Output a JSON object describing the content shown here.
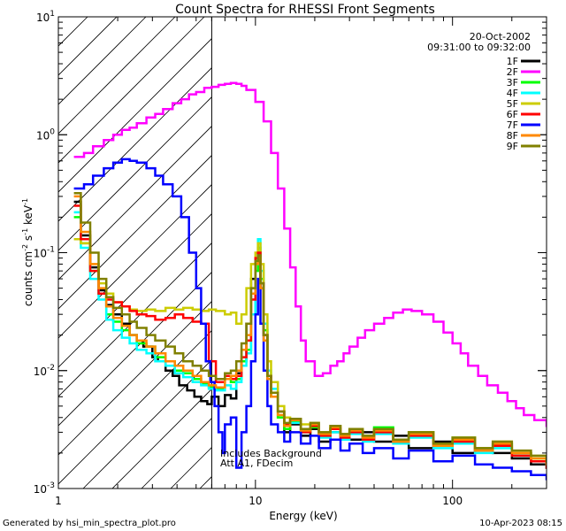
{
  "chart_data": {
    "type": "line",
    "title": "Count Spectra for RHESSI Front Segments",
    "xlabel": "Energy (keV)",
    "ylabel_main": "counts cm",
    "ylabel_exp1": "-2",
    "ylabel_mid": " s",
    "ylabel_exp2": "-1",
    "ylabel_tail": " keV",
    "ylabel_exp3": "-1",
    "x_scale": "log",
    "y_scale": "log",
    "xlim": [
      1,
      300
    ],
    "ylim": [
      0.001,
      10
    ],
    "x_ticks": [
      {
        "value": 1,
        "label": "1"
      },
      {
        "value": 10,
        "label": "10"
      },
      {
        "value": 100,
        "label": "100"
      }
    ],
    "y_ticks": [
      {
        "value": 10,
        "base": "10",
        "exp": "1"
      },
      {
        "value": 1,
        "base": "10",
        "exp": "0"
      },
      {
        "value": 0.1,
        "base": "10",
        "exp": "-1"
      },
      {
        "value": 0.01,
        "base": "10",
        "exp": "-2"
      },
      {
        "value": 0.001,
        "base": "10",
        "exp": "-3"
      }
    ],
    "date": "20-Oct-2002",
    "time_range": "09:31:00 to 09:32:00",
    "annotation_lines": [
      "Includes Background",
      "Att A1, FDecim"
    ],
    "shaded_region_keV": [
      1,
      6
    ],
    "legend_position": "top-right",
    "series": [
      {
        "name": "1F",
        "color": "#000000",
        "x": [
          1.2,
          1.3,
          1.45,
          1.6,
          1.75,
          1.9,
          2.1,
          2.3,
          2.5,
          2.7,
          3.0,
          3.2,
          3.5,
          3.8,
          4.1,
          4.5,
          4.9,
          5.3,
          5.7,
          6.0,
          6.5,
          7,
          7.5,
          8,
          8.5,
          9,
          9.5,
          10,
          10.3,
          10.6,
          11,
          11.5,
          12,
          13,
          14,
          15,
          17,
          19,
          21,
          24,
          27,
          30,
          35,
          40,
          50,
          60,
          80,
          100,
          130,
          160,
          200,
          250,
          300
        ],
        "y": [
          0.27,
          0.14,
          0.075,
          0.048,
          0.036,
          0.03,
          0.025,
          0.02,
          0.018,
          0.016,
          0.013,
          0.012,
          0.01,
          0.009,
          0.0075,
          0.0068,
          0.006,
          0.0055,
          0.0052,
          0.006,
          0.005,
          0.0062,
          0.0058,
          0.0095,
          0.012,
          0.025,
          0.06,
          0.08,
          0.1,
          0.05,
          0.02,
          0.009,
          0.006,
          0.004,
          0.003,
          0.0035,
          0.0028,
          0.0032,
          0.0025,
          0.003,
          0.0028,
          0.0026,
          0.003,
          0.0025,
          0.0028,
          0.0022,
          0.0025,
          0.002,
          0.0022,
          0.002,
          0.0018,
          0.0016,
          0.0015
        ]
      },
      {
        "name": "2F",
        "color": "#ff00ff",
        "x": [
          1.2,
          1.35,
          1.5,
          1.7,
          1.9,
          2.1,
          2.3,
          2.5,
          2.8,
          3.1,
          3.4,
          3.8,
          4.2,
          4.6,
          5.0,
          5.5,
          6.0,
          6.5,
          7.0,
          7.5,
          8.0,
          8.5,
          9.0,
          10,
          11,
          12,
          13,
          14,
          15,
          16,
          17,
          18,
          20,
          22,
          24,
          26,
          28,
          30,
          33,
          36,
          40,
          45,
          50,
          56,
          62,
          70,
          80,
          90,
          100,
          110,
          120,
          135,
          150,
          170,
          190,
          210,
          230,
          260,
          300
        ],
        "y": [
          0.65,
          0.7,
          0.8,
          0.9,
          1.0,
          1.1,
          1.15,
          1.25,
          1.4,
          1.5,
          1.65,
          1.85,
          2.0,
          2.2,
          2.3,
          2.5,
          2.55,
          2.65,
          2.7,
          2.75,
          2.7,
          2.6,
          2.4,
          1.9,
          1.3,
          0.7,
          0.35,
          0.16,
          0.075,
          0.035,
          0.018,
          0.012,
          0.009,
          0.0095,
          0.011,
          0.012,
          0.014,
          0.016,
          0.019,
          0.022,
          0.025,
          0.028,
          0.031,
          0.033,
          0.032,
          0.03,
          0.026,
          0.021,
          0.017,
          0.014,
          0.011,
          0.009,
          0.0075,
          0.0065,
          0.0055,
          0.0048,
          0.0042,
          0.0038,
          0.0034
        ]
      },
      {
        "name": "3F",
        "color": "#00ff00",
        "x": [
          1.2,
          1.3,
          1.45,
          1.6,
          1.75,
          1.9,
          2.1,
          2.3,
          2.5,
          2.8,
          3.1,
          3.5,
          3.9,
          4.3,
          4.8,
          5.3,
          5.8,
          6.3,
          7,
          7.5,
          8,
          8.5,
          9,
          9.5,
          10,
          10.3,
          10.6,
          11,
          11.5,
          12,
          13,
          14,
          15,
          17,
          19,
          21,
          24,
          27,
          30,
          35,
          40,
          50,
          60,
          80,
          100,
          130,
          160,
          200,
          250,
          300
        ],
        "y": [
          0.2,
          0.12,
          0.07,
          0.045,
          0.03,
          0.026,
          0.022,
          0.02,
          0.017,
          0.016,
          0.013,
          0.012,
          0.01,
          0.0095,
          0.0085,
          0.0078,
          0.0072,
          0.007,
          0.0085,
          0.008,
          0.0085,
          0.012,
          0.015,
          0.03,
          0.07,
          0.11,
          0.06,
          0.022,
          0.009,
          0.006,
          0.004,
          0.0032,
          0.0037,
          0.003,
          0.0033,
          0.0028,
          0.0032,
          0.0027,
          0.0031,
          0.0028,
          0.0033,
          0.0026,
          0.003,
          0.0024,
          0.0027,
          0.0022,
          0.0024,
          0.002,
          0.0018,
          0.0016
        ]
      },
      {
        "name": "4F",
        "color": "#00ffff",
        "x": [
          1.2,
          1.3,
          1.45,
          1.6,
          1.75,
          1.9,
          2.1,
          2.3,
          2.5,
          2.8,
          3.1,
          3.5,
          3.9,
          4.3,
          4.8,
          5.3,
          5.8,
          6.3,
          7,
          7.5,
          8,
          8.5,
          9,
          9.5,
          10,
          10.3,
          10.6,
          11,
          11.5,
          12,
          13,
          14,
          15,
          17,
          19,
          21,
          24,
          27,
          30,
          35,
          40,
          50,
          60,
          80,
          100,
          130,
          160,
          200,
          250,
          300
        ],
        "y": [
          0.22,
          0.11,
          0.06,
          0.04,
          0.027,
          0.022,
          0.019,
          0.017,
          0.015,
          0.014,
          0.012,
          0.011,
          0.0095,
          0.0088,
          0.008,
          0.0075,
          0.007,
          0.0068,
          0.0075,
          0.007,
          0.008,
          0.011,
          0.014,
          0.03,
          0.08,
          0.13,
          0.07,
          0.025,
          0.01,
          0.007,
          0.0045,
          0.0035,
          0.0036,
          0.003,
          0.0034,
          0.0027,
          0.003,
          0.0026,
          0.0029,
          0.0025,
          0.0029,
          0.0024,
          0.0027,
          0.0022,
          0.0024,
          0.002,
          0.0022,
          0.0019,
          0.0017,
          0.0015
        ]
      },
      {
        "name": "5F",
        "color": "#cccc00",
        "x": [
          1.2,
          1.3,
          1.45,
          1.6,
          1.75,
          1.9,
          2.1,
          2.3,
          2.5,
          2.8,
          3.1,
          3.5,
          3.9,
          4.3,
          4.8,
          5.3,
          5.8,
          6.3,
          7,
          7.5,
          8,
          8.5,
          9,
          9.5,
          10,
          10.3,
          10.6,
          11,
          11.5,
          12,
          13,
          14,
          15,
          17,
          19,
          21,
          24,
          27,
          30,
          35,
          40,
          50,
          60,
          80,
          100,
          130,
          160,
          200,
          250,
          300
        ],
        "y": [
          0.13,
          0.12,
          0.08,
          0.055,
          0.045,
          0.038,
          0.035,
          0.033,
          0.032,
          0.033,
          0.032,
          0.034,
          0.033,
          0.034,
          0.033,
          0.032,
          0.033,
          0.032,
          0.03,
          0.031,
          0.025,
          0.03,
          0.05,
          0.08,
          0.1,
          0.12,
          0.08,
          0.03,
          0.012,
          0.008,
          0.005,
          0.004,
          0.0038,
          0.0035,
          0.0036,
          0.003,
          0.0034,
          0.0029,
          0.0032,
          0.0028,
          0.0031,
          0.0026,
          0.003,
          0.0024,
          0.0027,
          0.0022,
          0.0025,
          0.002,
          0.0018,
          0.0016
        ]
      },
      {
        "name": "6F",
        "color": "#ff0000",
        "x": [
          1.2,
          1.3,
          1.45,
          1.6,
          1.75,
          1.9,
          2.1,
          2.3,
          2.5,
          2.8,
          3.1,
          3.5,
          3.9,
          4.3,
          4.8,
          5.3,
          5.8,
          6.3,
          7,
          7.5,
          8,
          8.5,
          9,
          9.5,
          10,
          10.3,
          10.6,
          11,
          11.5,
          12,
          13,
          14,
          15,
          17,
          19,
          21,
          24,
          27,
          30,
          35,
          40,
          50,
          60,
          80,
          100,
          130,
          160,
          200,
          250,
          300
        ],
        "y": [
          0.25,
          0.13,
          0.07,
          0.045,
          0.04,
          0.038,
          0.035,
          0.032,
          0.03,
          0.029,
          0.027,
          0.028,
          0.03,
          0.028,
          0.026,
          0.025,
          0.012,
          0.008,
          0.009,
          0.0085,
          0.009,
          0.013,
          0.018,
          0.04,
          0.09,
          0.1,
          0.055,
          0.02,
          0.009,
          0.0065,
          0.0045,
          0.0035,
          0.0038,
          0.003,
          0.0034,
          0.0028,
          0.0032,
          0.0027,
          0.003,
          0.0026,
          0.003,
          0.0025,
          0.0028,
          0.0023,
          0.0025,
          0.0021,
          0.0023,
          0.0019,
          0.0017,
          0.0015
        ]
      },
      {
        "name": "7F",
        "color": "#0000ff",
        "x": [
          1.2,
          1.35,
          1.5,
          1.7,
          1.9,
          2.1,
          2.3,
          2.5,
          2.8,
          3.1,
          3.4,
          3.8,
          4.2,
          4.6,
          5.0,
          5.3,
          5.6,
          5.9,
          6.2,
          6.5,
          6.8,
          7,
          7.5,
          8,
          8.5,
          9,
          9.5,
          10,
          10.3,
          10.6,
          11,
          11.5,
          12,
          13,
          14,
          15,
          17,
          19,
          21,
          24,
          27,
          30,
          35,
          40,
          50,
          60,
          80,
          100,
          130,
          160,
          200,
          250,
          300
        ],
        "y": [
          0.35,
          0.38,
          0.45,
          0.52,
          0.58,
          0.62,
          0.6,
          0.58,
          0.52,
          0.45,
          0.38,
          0.3,
          0.2,
          0.1,
          0.05,
          0.025,
          0.012,
          0.008,
          0.005,
          0.003,
          0.002,
          0.0035,
          0.004,
          0.0015,
          0.003,
          0.005,
          0.012,
          0.03,
          0.06,
          0.025,
          0.01,
          0.005,
          0.0035,
          0.003,
          0.0025,
          0.003,
          0.0024,
          0.0028,
          0.0022,
          0.0026,
          0.0021,
          0.0024,
          0.002,
          0.0022,
          0.0018,
          0.0021,
          0.0017,
          0.0019,
          0.0016,
          0.0015,
          0.0014,
          0.0013,
          0.0012
        ]
      },
      {
        "name": "8F",
        "color": "#ff8800",
        "x": [
          1.2,
          1.3,
          1.45,
          1.6,
          1.75,
          1.9,
          2.1,
          2.3,
          2.5,
          2.8,
          3.1,
          3.5,
          3.9,
          4.3,
          4.8,
          5.3,
          5.8,
          6.3,
          7,
          7.5,
          8,
          8.5,
          9,
          9.5,
          10,
          10.3,
          10.6,
          11,
          11.5,
          12,
          13,
          14,
          15,
          17,
          19,
          21,
          24,
          27,
          30,
          35,
          40,
          50,
          60,
          80,
          100,
          130,
          160,
          200,
          250,
          300
        ],
        "y": [
          0.3,
          0.15,
          0.08,
          0.05,
          0.035,
          0.028,
          0.024,
          0.02,
          0.018,
          0.016,
          0.014,
          0.012,
          0.011,
          0.01,
          0.009,
          0.008,
          0.0075,
          0.0072,
          0.0085,
          0.009,
          0.01,
          0.015,
          0.02,
          0.045,
          0.08,
          0.09,
          0.05,
          0.018,
          0.0085,
          0.006,
          0.0042,
          0.0034,
          0.0038,
          0.0031,
          0.0035,
          0.0029,
          0.0033,
          0.0028,
          0.0031,
          0.0027,
          0.0031,
          0.0025,
          0.0029,
          0.0023,
          0.0026,
          0.0021,
          0.0024,
          0.002,
          0.0018,
          0.0016
        ]
      },
      {
        "name": "9F",
        "color": "#808000",
        "x": [
          1.2,
          1.3,
          1.45,
          1.6,
          1.75,
          1.9,
          2.1,
          2.3,
          2.5,
          2.8,
          3.1,
          3.5,
          3.9,
          4.3,
          4.8,
          5.3,
          5.8,
          6.3,
          7,
          7.5,
          8,
          8.5,
          9,
          9.5,
          10,
          10.3,
          10.6,
          11,
          11.5,
          12,
          13,
          14,
          15,
          17,
          19,
          21,
          24,
          27,
          30,
          35,
          40,
          50,
          60,
          80,
          100,
          130,
          160,
          200,
          250,
          300
        ],
        "y": [
          0.32,
          0.18,
          0.1,
          0.06,
          0.042,
          0.034,
          0.03,
          0.026,
          0.023,
          0.02,
          0.018,
          0.016,
          0.014,
          0.012,
          0.011,
          0.01,
          0.009,
          0.0085,
          0.0095,
          0.01,
          0.012,
          0.017,
          0.025,
          0.05,
          0.085,
          0.095,
          0.055,
          0.02,
          0.009,
          0.0065,
          0.0045,
          0.0036,
          0.0039,
          0.0032,
          0.0036,
          0.003,
          0.0034,
          0.0029,
          0.0032,
          0.0028,
          0.0032,
          0.0026,
          0.003,
          0.0024,
          0.0027,
          0.0022,
          0.0025,
          0.0021,
          0.0019,
          0.0017
        ]
      }
    ]
  },
  "footer": {
    "generated_by": "Generated by hsi_min_spectra_plot.pro",
    "timestamp": "10-Apr-2023 08:15"
  }
}
